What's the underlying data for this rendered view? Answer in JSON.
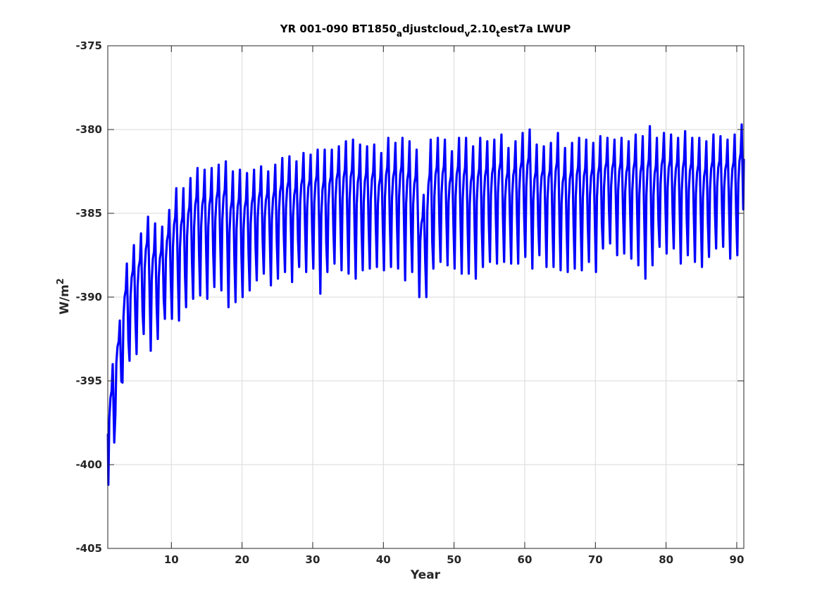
{
  "chart_data": {
    "type": "line",
    "title_parts": [
      {
        "text": "YR 001-090 BT1850",
        "sub": false
      },
      {
        "text": "a",
        "sub": true
      },
      {
        "text": "djustcloud",
        "sub": false
      },
      {
        "text": "v",
        "sub": true
      },
      {
        "text": "2.10",
        "sub": false
      },
      {
        "text": "t",
        "sub": true
      },
      {
        "text": "est7a LWUP",
        "sub": false
      }
    ],
    "xlabel": "Year",
    "ylabel_base": "W/m",
    "ylabel_sup": "2",
    "xlim": [
      1,
      91
    ],
    "ylim": [
      -405,
      -375
    ],
    "xticks": [
      10,
      20,
      30,
      40,
      50,
      60,
      70,
      80,
      90
    ],
    "yticks": [
      -405,
      -400,
      -395,
      -390,
      -385,
      -380,
      -375
    ],
    "grid": true,
    "legend": "none",
    "line_color": "#0000ff",
    "series": [
      {
        "description_note": "",
        "annual_minimum": [
          -401.2,
          -397.0,
          -395.1,
          -393.8,
          -393.4,
          -392.2,
          -393.2,
          -392.5,
          -391.3,
          -391.3,
          -391.4,
          -390.6,
          -390.1,
          -389.9,
          -390.1,
          -389.4,
          -389.6,
          -390.6,
          -390.3,
          -390.0,
          -389.6,
          -389.0,
          -388.6,
          -389.3,
          -388.9,
          -388.5,
          -389.1,
          -388.2,
          -388.5,
          -388.3,
          -389.8,
          -388.5,
          -388.0,
          -388.4,
          -388.6,
          -388.9,
          -388.4,
          -388.3,
          -388.2,
          -388.4,
          -388.2,
          -388.3,
          -389.0,
          -388.5,
          -390.0,
          -390.0,
          -388.3,
          -387.9,
          -388.1,
          -388.3,
          -388.6,
          -388.6,
          -388.9,
          -388.2,
          -387.9,
          -388.0,
          -387.9,
          -388.0,
          -388.0,
          -387.6,
          -388.3,
          -387.5,
          -388.2,
          -388.2,
          -388.4,
          -388.5,
          -388.3,
          -388.4,
          -387.9,
          -388.5,
          -387.1,
          -386.8,
          -387.5,
          -387.4,
          -387.7,
          -388.1,
          -388.9,
          -388.1,
          -387.0,
          -387.4,
          -387.1,
          -388.0,
          -387.5,
          -387.9,
          -388.2,
          -387.6,
          -387.1,
          -387.0,
          -387.7,
          -387.5
        ],
        "annual_maximum": [
          -394.0,
          -391.4,
          -388.0,
          -386.9,
          -386.2,
          -385.2,
          -385.6,
          -385.8,
          -384.8,
          -383.5,
          -383.5,
          -382.9,
          -382.3,
          -382.4,
          -382.3,
          -382.1,
          -381.9,
          -382.5,
          -382.4,
          -382.6,
          -382.4,
          -382.2,
          -382.5,
          -382.1,
          -381.7,
          -381.6,
          -381.9,
          -381.4,
          -381.5,
          -381.2,
          -381.2,
          -381.2,
          -381.0,
          -380.7,
          -380.6,
          -380.9,
          -381.0,
          -380.9,
          -381.4,
          -380.5,
          -380.8,
          -380.5,
          -380.7,
          -381.2,
          -383.9,
          -380.6,
          -380.5,
          -380.6,
          -381.3,
          -380.5,
          -380.5,
          -381.0,
          -380.5,
          -380.7,
          -380.6,
          -380.3,
          -381.1,
          -380.7,
          -380.2,
          -380.0,
          -380.9,
          -381.0,
          -380.8,
          -380.2,
          -381.1,
          -380.8,
          -380.5,
          -380.6,
          -380.8,
          -380.4,
          -380.5,
          -380.6,
          -380.5,
          -380.7,
          -380.3,
          -380.4,
          -379.8,
          -380.5,
          -380.2,
          -380.3,
          -380.5,
          -380.1,
          -380.5,
          -380.5,
          -380.7,
          -380.3,
          -380.4,
          -380.6,
          -380.3,
          -379.7
        ],
        "final_value": -381.8
      }
    ]
  }
}
